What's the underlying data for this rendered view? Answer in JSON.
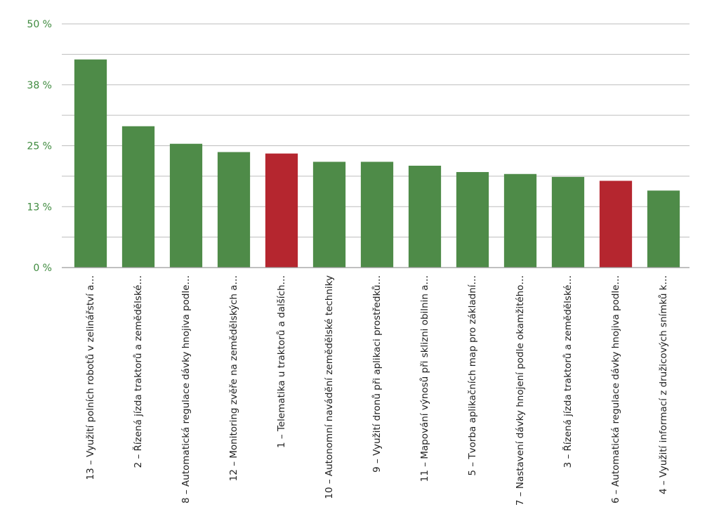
{
  "chart_data": {
    "type": "bar",
    "title": "",
    "xlabel": "",
    "ylabel": "",
    "ylim": [
      0,
      50
    ],
    "y_ticks": [
      "0 %",
      "13 %",
      "25 %",
      "38 %",
      "50 %"
    ],
    "y_tick_values": [
      0,
      12.5,
      25,
      37.5,
      50
    ],
    "grid": true,
    "categories": [
      "13 – Využití polních robotů v zelinářství a…",
      "2 – Řízená jízda traktorů a zemědělské…",
      "8 – Automatická regulace dávky hnojiva podle…",
      "12 – Monitoring zvěře na zemědělských a…",
      "1 – Telematika u traktorů a dalších…",
      "10 – Autonomní navádění zemědělské techniky",
      "9 – Využití dronů při aplikaci prostředků…",
      "11 – Mapování výnosů při sklizni obilnin a…",
      "5 – Tvorba aplikačních map pro základní…",
      "7 – Nastavení dávky hnojení podle okamžitého…",
      "3 – Řízená jízda traktorů a zemědělské…",
      "6 – Automatická regulace dávky hnojiva podle…",
      "4 – Využití informací z družicových snímků k…"
    ],
    "values": [
      42.7,
      29.0,
      25.4,
      23.7,
      23.4,
      21.7,
      21.7,
      20.9,
      19.6,
      19.2,
      18.6,
      17.8,
      15.8
    ],
    "colors": [
      "#4e8b48",
      "#4e8b48",
      "#4e8b48",
      "#4e8b48",
      "#b5262f",
      "#4e8b48",
      "#4e8b48",
      "#4e8b48",
      "#4e8b48",
      "#4e8b48",
      "#4e8b48",
      "#b5262f",
      "#4e8b48"
    ]
  }
}
